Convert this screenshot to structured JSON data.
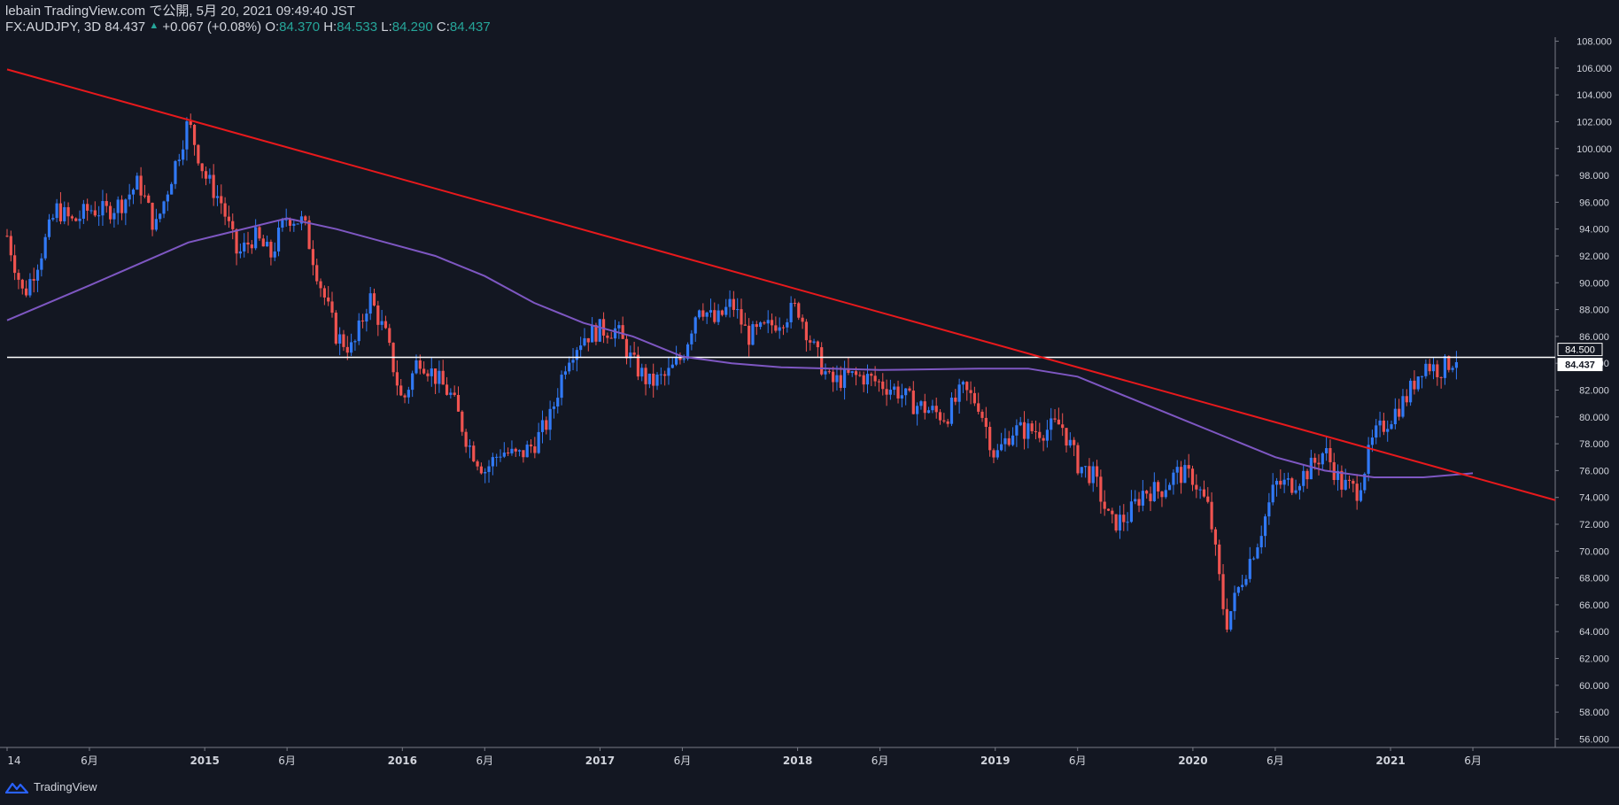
{
  "header": {
    "publish_line": "lebain TradingView.com で公開, 5月 20, 2021 09:49:40 JST",
    "symbol": "FX:AUDJPY, 3D",
    "last": "84.437",
    "change": "+0.067 (+0.08%)",
    "o_label": "O:",
    "o_value": "84.370",
    "h_label": "H:",
    "h_value": "84.533",
    "l_label": "L:",
    "l_value": "84.290",
    "c_label": "C:",
    "c_value": "84.437"
  },
  "footer": {
    "brand": "TradingView"
  },
  "colors": {
    "background": "#131722",
    "up": "#3179f5",
    "down": "#ef5350",
    "trendline": "#e8191c",
    "moving_average": "#7e57c2",
    "horizontal_line": "#ffffff",
    "axis_text": "#d1d4dc",
    "header_values": "#26a69a"
  },
  "chart_data": {
    "type": "candlestick",
    "symbol": "FX:AUDJPY",
    "timeframe": "3D",
    "x_range": [
      "2014-01",
      "2021-11"
    ],
    "ylim": [
      55.5,
      108.3
    ],
    "y_ticks": [
      "56.000",
      "58.000",
      "60.000",
      "62.000",
      "64.000",
      "66.000",
      "68.000",
      "70.000",
      "72.000",
      "74.000",
      "76.000",
      "78.000",
      "80.000",
      "82.000",
      "84.000",
      "86.000",
      "88.000",
      "90.000",
      "92.000",
      "94.000",
      "96.000",
      "98.000",
      "100.000",
      "102.000",
      "104.000",
      "106.000",
      "108.000"
    ],
    "x_ticks": [
      {
        "date": "2014-01",
        "label": "14"
      },
      {
        "date": "2014-06",
        "label": "6月"
      },
      {
        "date": "2015-01",
        "label": "2015"
      },
      {
        "date": "2015-06",
        "label": "6月"
      },
      {
        "date": "2016-01",
        "label": "2016"
      },
      {
        "date": "2016-06",
        "label": "6月"
      },
      {
        "date": "2017-01",
        "label": "2017"
      },
      {
        "date": "2017-06",
        "label": "6月"
      },
      {
        "date": "2018-01",
        "label": "2018"
      },
      {
        "date": "2018-06",
        "label": "6月"
      },
      {
        "date": "2019-01",
        "label": "2019"
      },
      {
        "date": "2019-06",
        "label": "6月"
      },
      {
        "date": "2020-01",
        "label": "2020"
      },
      {
        "date": "2020-06",
        "label": "6月"
      },
      {
        "date": "2021-01",
        "label": "2021"
      },
      {
        "date": "2021-06",
        "label": "6月"
      }
    ],
    "price_path": [
      [
        "2014-01",
        93.5
      ],
      [
        "2014-02",
        89
      ],
      [
        "2014-03",
        92
      ],
      [
        "2014-04",
        95.5
      ],
      [
        "2014-05",
        94.5
      ],
      [
        "2014-06",
        95.5
      ],
      [
        "2014-07",
        95.3
      ],
      [
        "2014-08",
        96
      ],
      [
        "2014-09",
        97.5
      ],
      [
        "2014-10",
        94
      ],
      [
        "2014-11",
        98
      ],
      [
        "2014-12",
        102
      ],
      [
        "2015-01",
        98
      ],
      [
        "2015-02",
        96
      ],
      [
        "2015-03",
        92
      ],
      [
        "2015-04",
        93.5
      ],
      [
        "2015-05",
        92
      ],
      [
        "2015-06",
        95
      ],
      [
        "2015-07",
        94.5
      ],
      [
        "2015-08",
        90
      ],
      [
        "2015-09",
        86
      ],
      [
        "2015-10",
        85
      ],
      [
        "2015-11",
        89
      ],
      [
        "2015-12",
        86
      ],
      [
        "2016-01",
        81
      ],
      [
        "2016-02",
        84.5
      ],
      [
        "2016-03",
        83
      ],
      [
        "2016-04",
        81.5
      ],
      [
        "2016-05",
        78
      ],
      [
        "2016-06",
        76
      ],
      [
        "2016-07",
        77.5
      ],
      [
        "2016-08",
        77
      ],
      [
        "2016-09",
        78
      ],
      [
        "2016-10",
        80
      ],
      [
        "2016-11",
        84.5
      ],
      [
        "2016-12",
        86
      ],
      [
        "2017-01",
        86.5
      ],
      [
        "2017-02",
        86.5
      ],
      [
        "2017-03",
        84
      ],
      [
        "2017-04",
        82.5
      ],
      [
        "2017-05",
        83
      ],
      [
        "2017-06",
        84.5
      ],
      [
        "2017-07",
        88.5
      ],
      [
        "2017-08",
        87
      ],
      [
        "2017-09",
        88.5
      ],
      [
        "2017-10",
        86
      ],
      [
        "2017-11",
        86.5
      ],
      [
        "2018-01",
        88.2
      ],
      [
        "2018-02",
        85
      ],
      [
        "2018-03",
        82.5
      ],
      [
        "2018-04",
        83
      ],
      [
        "2018-05",
        83
      ],
      [
        "2018-06",
        82.5
      ],
      [
        "2018-07",
        82
      ],
      [
        "2018-08",
        81
      ],
      [
        "2018-09",
        80.5
      ],
      [
        "2018-10",
        80
      ],
      [
        "2018-11",
        82
      ],
      [
        "2018-12",
        81
      ],
      [
        "2019-01",
        77
      ],
      [
        "2019-02",
        79
      ],
      [
        "2019-03",
        79
      ],
      [
        "2019-04",
        79
      ],
      [
        "2019-05",
        79.5
      ],
      [
        "2019-06",
        76.5
      ],
      [
        "2019-07",
        75.5
      ],
      [
        "2019-08",
        72
      ],
      [
        "2019-09",
        72.5
      ],
      [
        "2019-10",
        74.5
      ],
      [
        "2019-11",
        74.5
      ],
      [
        "2019-12",
        75.8
      ],
      [
        "2020-01",
        75.5
      ],
      [
        "2020-02",
        73
      ],
      [
        "2020-03",
        64.5
      ],
      [
        "2020-04",
        68
      ],
      [
        "2020-05",
        71
      ],
      [
        "2020-06",
        75
      ],
      [
        "2020-07",
        75
      ],
      [
        "2020-08",
        76
      ],
      [
        "2020-09",
        77.5
      ],
      [
        "2020-10",
        75
      ],
      [
        "2020-11",
        74.5
      ],
      [
        "2020-12",
        78.5
      ],
      [
        "2021-01",
        80
      ],
      [
        "2021-02",
        81.5
      ],
      [
        "2021-03",
        84
      ],
      [
        "2021-04",
        83.5
      ],
      [
        "2021-05",
        84.437
      ]
    ],
    "trendline": {
      "start": [
        "2014-01",
        105.9
      ],
      "end": [
        "2021-11",
        73.8
      ]
    },
    "moving_average": [
      [
        "2014-01",
        87.2
      ],
      [
        "2014-06",
        89.8
      ],
      [
        "2014-12",
        93
      ],
      [
        "2015-06",
        94.8
      ],
      [
        "2015-09",
        94
      ],
      [
        "2015-12",
        93
      ],
      [
        "2016-03",
        92
      ],
      [
        "2016-06",
        90.5
      ],
      [
        "2016-09",
        88.5
      ],
      [
        "2016-12",
        87
      ],
      [
        "2017-03",
        86
      ],
      [
        "2017-06",
        84.5
      ],
      [
        "2017-09",
        84
      ],
      [
        "2017-12",
        83.7
      ],
      [
        "2018-06",
        83.5
      ],
      [
        "2018-12",
        83.6
      ],
      [
        "2019-03",
        83.6
      ],
      [
        "2019-06",
        83
      ],
      [
        "2019-09",
        81.5
      ],
      [
        "2019-12",
        80
      ],
      [
        "2020-03",
        78.5
      ],
      [
        "2020-06",
        77
      ],
      [
        "2020-09",
        76
      ],
      [
        "2020-12",
        75.5
      ],
      [
        "2021-03",
        75.5
      ],
      [
        "2021-06",
        75.8
      ]
    ],
    "horizontal_lines": [
      84.437
    ],
    "price_labels": [
      {
        "value": 84.5,
        "label": "84.500"
      },
      {
        "value": 84.437,
        "label": "84.437"
      }
    ]
  }
}
